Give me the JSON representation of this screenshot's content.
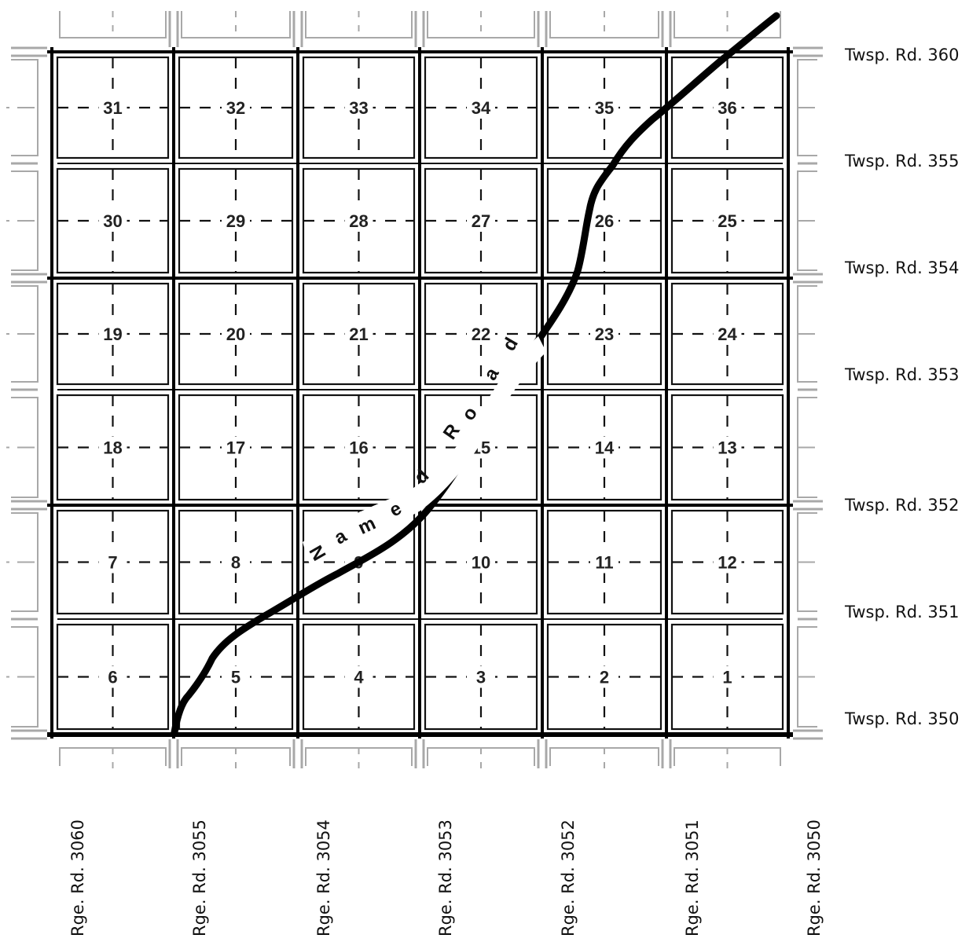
{
  "map": {
    "sections": [
      [
        "31",
        "32",
        "33",
        "34",
        "35",
        "36"
      ],
      [
        "30",
        "29",
        "28",
        "27",
        "26",
        "25"
      ],
      [
        "19",
        "20",
        "21",
        "22",
        "23",
        "24"
      ],
      [
        "18",
        "17",
        "16",
        "15",
        "14",
        "13"
      ],
      [
        "7",
        "8",
        "9",
        "10",
        "11",
        "12"
      ],
      [
        "6",
        "5",
        "4",
        "3",
        "2",
        "1"
      ]
    ],
    "township_roads": [
      {
        "label": "Twsp. Rd. 360",
        "row": 0
      },
      {
        "label": "Twsp. Rd. 355",
        "row": 1
      },
      {
        "label": "Twsp. Rd. 354",
        "row": 2
      },
      {
        "label": "Twsp. Rd. 353",
        "row": 3
      },
      {
        "label": "Twsp. Rd. 352",
        "row": 4
      },
      {
        "label": "Twsp. Rd. 351",
        "row": 5
      },
      {
        "label": "Twsp. Rd. 350",
        "row": 6
      }
    ],
    "range_roads": [
      "Rge. Rd. 3060",
      "Rge. Rd. 3055",
      "Rge. Rd. 3054",
      "Rge. Rd. 3053",
      "Rge. Rd. 3052",
      "Rge. Rd. 3051",
      "Rge. Rd. 3050"
    ],
    "named_road": {
      "label": "Named Road",
      "letters": [
        "N",
        "a",
        "m",
        "e",
        "d",
        "R",
        "o",
        "a",
        "d"
      ],
      "color": "#000000"
    },
    "colors": {
      "road_black": "#000000",
      "road_gray": "#a8a8a8",
      "cell_border": "#111111"
    }
  }
}
